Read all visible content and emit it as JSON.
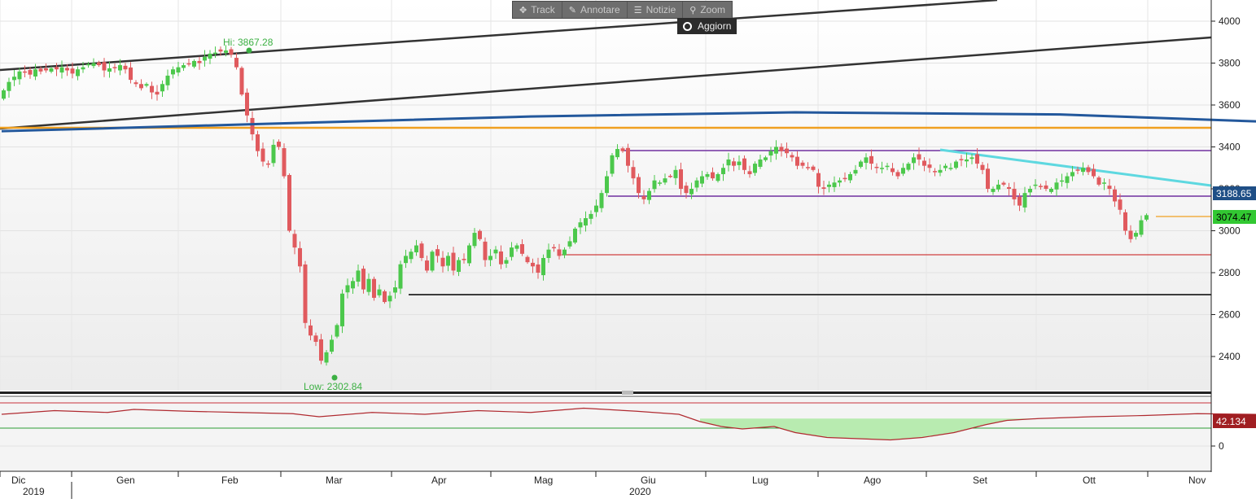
{
  "toolbar": {
    "track_label": "Track",
    "annotate_label": "Annotare",
    "news_label": "Notizie",
    "zoom_label": "Zoom",
    "refresh_label": "Aggiorn"
  },
  "chart_data": {
    "type": "candlestick",
    "yaxis": {
      "ticks": [
        "4000",
        "3800",
        "3600",
        "3400",
        "3200",
        "3000",
        "2800",
        "2600",
        "2400"
      ],
      "ylim": [
        2220,
        4090
      ]
    },
    "xaxis": {
      "months": [
        "Dic",
        "Gen",
        "Feb",
        "Mar",
        "Apr",
        "Mag",
        "Giu",
        "Lug",
        "Ago",
        "Set",
        "Ott",
        "Nov"
      ],
      "years": [
        "2019",
        "2020"
      ]
    },
    "annotations": {
      "high": "Hi: 3867.28",
      "low": "Low: 2302.84"
    },
    "price_badges": {
      "ma": "3188.65",
      "last": "3074.47"
    },
    "closes": [
      3670,
      3710,
      3735,
      3760,
      3755,
      3745,
      3770,
      3760,
      3765,
      3775,
      3770,
      3780,
      3765,
      3750,
      3770,
      3780,
      3795,
      3800,
      3790,
      3765,
      3775,
      3780,
      3790,
      3770,
      3720,
      3700,
      3680,
      3700,
      3660,
      3650,
      3700,
      3740,
      3770,
      3780,
      3790,
      3795,
      3810,
      3800,
      3830,
      3845,
      3850,
      3855,
      3860,
      3840,
      3780,
      3650,
      3550,
      3460,
      3380,
      3330,
      3320,
      3410,
      3400,
      3260,
      3000,
      2920,
      2830,
      2560,
      2500,
      2470,
      2380,
      2420,
      2480,
      2550,
      2700,
      2740,
      2760,
      2810,
      2720,
      2770,
      2680,
      2720,
      2660,
      2690,
      2730,
      2840,
      2880,
      2900,
      2930,
      2870,
      2810,
      2900,
      2880,
      2830,
      2880,
      2810,
      2860,
      2860,
      2930,
      2990,
      2960,
      2860,
      2880,
      2910,
      2840,
      2860,
      2920,
      2930,
      2890,
      2850,
      2830,
      2800,
      2870,
      2910,
      2920,
      2880,
      2910,
      2950,
      3010,
      3040,
      3060,
      3080,
      3120,
      3180,
      3260,
      3360,
      3390,
      3380,
      3310,
      3250,
      3180,
      3150,
      3190,
      3240,
      3230,
      3250,
      3260,
      3290,
      3200,
      3180,
      3200,
      3240,
      3260,
      3270,
      3250,
      3270,
      3300,
      3340,
      3310,
      3330,
      3290,
      3270,
      3320,
      3340,
      3350,
      3380,
      3400,
      3380,
      3370,
      3350,
      3310,
      3310,
      3300,
      3290,
      3210,
      3200,
      3220,
      3230,
      3240,
      3250,
      3270,
      3290,
      3330,
      3350,
      3320,
      3300,
      3300,
      3310,
      3280,
      3260,
      3300,
      3320,
      3350,
      3340,
      3310,
      3300,
      3280,
      3290,
      3310,
      3300,
      3330,
      3340,
      3340,
      3350,
      3320,
      3290,
      3200,
      3200,
      3220,
      3220,
      3200,
      3150,
      3120,
      3180,
      3200,
      3220,
      3210,
      3200,
      3200,
      3230,
      3240,
      3260,
      3280,
      3290,
      3300,
      3280,
      3260,
      3220,
      3230,
      3200,
      3140,
      3100,
      3000,
      2960,
      2990,
      3050,
      3074.47
    ],
    "moving_average": {
      "name": "",
      "points": [
        [
          0,
          3475
        ],
        [
          50,
          3510
        ],
        [
          100,
          3545
        ],
        [
          150,
          3565
        ],
        [
          200,
          3555
        ],
        [
          250,
          3510
        ],
        [
          300,
          3450
        ],
        [
          350,
          3405
        ],
        [
          400,
          3380
        ],
        [
          450,
          3360
        ],
        [
          500,
          3325
        ],
        [
          550,
          3265
        ],
        [
          600,
          3175
        ]
      ]
    },
    "rsi": {
      "value_label": "42.134",
      "ticks": [
        "0"
      ],
      "points": [
        [
          0,
          52
        ],
        [
          10,
          58
        ],
        [
          20,
          55
        ],
        [
          25,
          60
        ],
        [
          35,
          57
        ],
        [
          45,
          55
        ],
        [
          55,
          53
        ],
        [
          60,
          48
        ],
        [
          70,
          55
        ],
        [
          80,
          52
        ],
        [
          90,
          58
        ],
        [
          100,
          55
        ],
        [
          110,
          62
        ],
        [
          120,
          57
        ],
        [
          128,
          52
        ],
        [
          132,
          40
        ],
        [
          136,
          32
        ],
        [
          140,
          28
        ],
        [
          146,
          32
        ],
        [
          150,
          22
        ],
        [
          156,
          14
        ],
        [
          162,
          12
        ],
        [
          168,
          10
        ],
        [
          174,
          14
        ],
        [
          180,
          22
        ],
        [
          186,
          35
        ],
        [
          190,
          42
        ],
        [
          196,
          45
        ],
        [
          206,
          48
        ],
        [
          216,
          50
        ],
        [
          226,
          53
        ],
        [
          236,
          52
        ],
        [
          246,
          50
        ],
        [
          256,
          55
        ],
        [
          266,
          52
        ],
        [
          276,
          55
        ],
        [
          286,
          60
        ],
        [
          296,
          65
        ],
        [
          306,
          72
        ],
        [
          311,
          78
        ],
        [
          316,
          72
        ],
        [
          322,
          60
        ],
        [
          330,
          52
        ],
        [
          340,
          55
        ],
        [
          350,
          60
        ],
        [
          360,
          56
        ],
        [
          370,
          52
        ],
        [
          380,
          62
        ],
        [
          390,
          58
        ],
        [
          400,
          48
        ],
        [
          410,
          42
        ],
        [
          420,
          50
        ],
        [
          430,
          55
        ],
        [
          440,
          52
        ],
        [
          450,
          56
        ],
        [
          460,
          60
        ],
        [
          470,
          58
        ],
        [
          480,
          52
        ],
        [
          490,
          50
        ],
        [
          500,
          45
        ],
        [
          505,
          38
        ],
        [
          510,
          36
        ],
        [
          515,
          44
        ],
        [
          520,
          42
        ],
        [
          530,
          48
        ],
        [
          540,
          52
        ],
        [
          550,
          56
        ],
        [
          560,
          58
        ],
        [
          566,
          50
        ],
        [
          572,
          42
        ],
        [
          578,
          38
        ],
        [
          584,
          30
        ],
        [
          590,
          28
        ],
        [
          596,
          36
        ],
        [
          600,
          42.134
        ]
      ]
    }
  }
}
